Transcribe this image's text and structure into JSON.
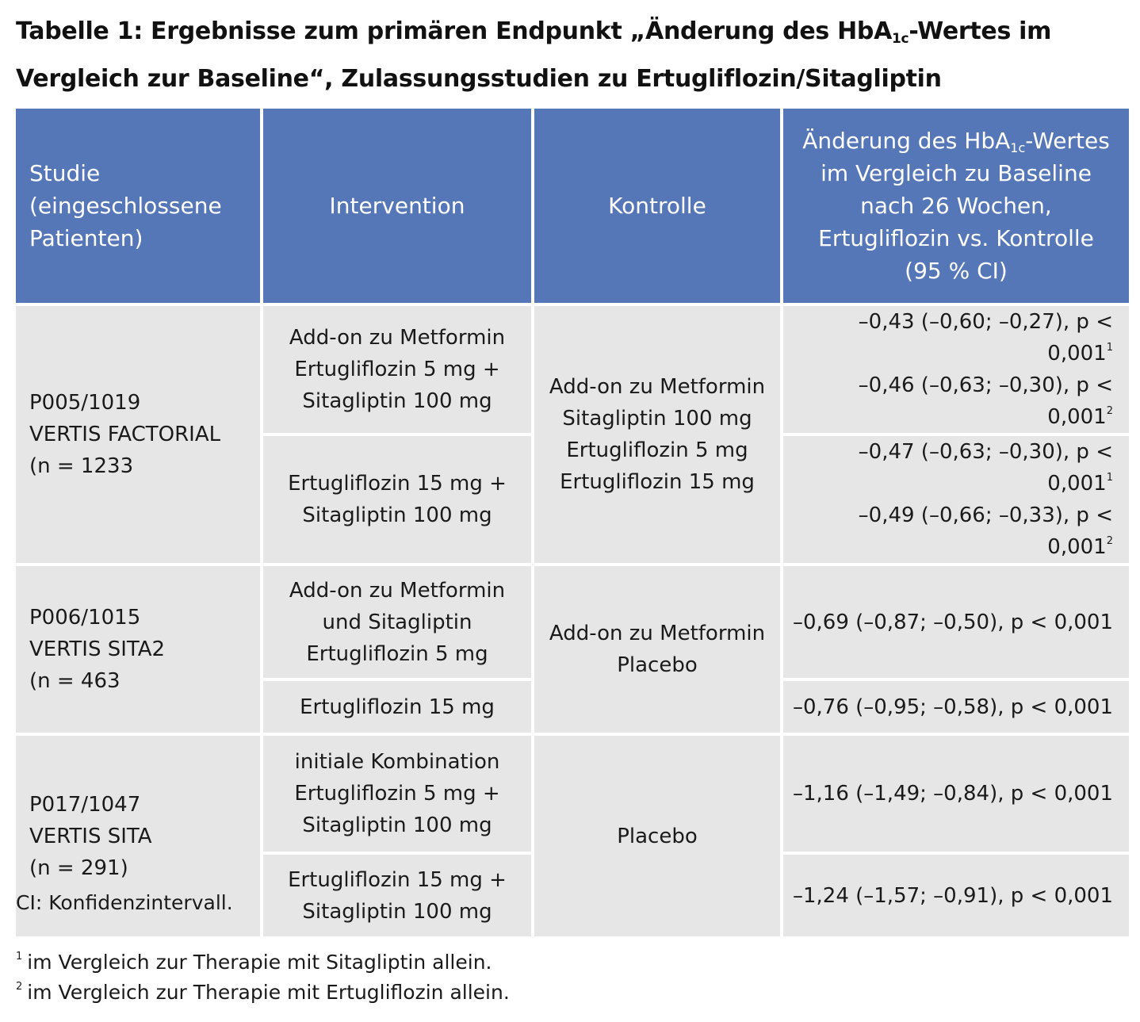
{
  "title": {
    "part1": "Tabelle 1: Ergebnisse zum primären Endpunkt „Änderung des HbA",
    "sub": "1c",
    "part2": "-Wertes im Vergleich zur Baseline“, Zulassungsstudien zu Ertugliflozin/Sitagliptin"
  },
  "columns": {
    "study": [
      "Studie",
      "(eingeschlossene",
      "Patienten)"
    ],
    "intervention": "Intervention",
    "control": "Kontrolle",
    "change": {
      "line1_pre": "Änderung des HbA",
      "line1_sub": "1c",
      "line1_post": "-Wertes",
      "line2": "im Vergleich zu Baseline",
      "line3": "nach 26 Wochen,",
      "line4": "Ertugliflozin vs. Kontrolle",
      "line5": "(95 % CI)"
    }
  },
  "studies": [
    {
      "study": [
        "P005/1019",
        "VERTIS FACTORIAL",
        "(n = 1233"
      ],
      "control": [
        "Add-on zu Metformin",
        "Sitagliptin 100 mg",
        "Ertugliflozin 5 mg",
        "Ertugliflozin 15 mg"
      ],
      "rows": [
        {
          "intervention": [
            "Add-on zu Metformin",
            "Ertugliflozin 5 mg +",
            "Sitagliptin 100 mg"
          ],
          "results": [
            {
              "text": "–0,43 (–0,60; –0,27), p < 0,001",
              "fn": "1"
            },
            {
              "text": "–0,46 (–0,63; –0,30), p < 0,001",
              "fn": "2"
            }
          ]
        },
        {
          "intervention": [
            "Ertugliflozin 15 mg +",
            "Sitagliptin 100 mg"
          ],
          "results": [
            {
              "text": "–0,47 (–0,63; –0,30), p < 0,001",
              "fn": "1"
            },
            {
              "text": "–0,49 (–0,66; –0,33), p < 0,001",
              "fn": "2"
            }
          ]
        }
      ]
    },
    {
      "study": [
        "P006/1015",
        "VERTIS SITA2",
        "(n = 463"
      ],
      "control": [
        "Add-on zu Metformin",
        "Placebo"
      ],
      "rows": [
        {
          "intervention": [
            "Add-on zu Metformin",
            "und Sitagliptin",
            "Ertugliflozin 5 mg"
          ],
          "results": [
            {
              "text": "–0,69 (–0,87; –0,50), p < 0,001",
              "fn": ""
            }
          ]
        },
        {
          "intervention": [
            "Ertugliflozin 15 mg"
          ],
          "results": [
            {
              "text": "–0,76 (–0,95; –0,58), p < 0,001",
              "fn": ""
            }
          ]
        }
      ]
    },
    {
      "study": [
        "P017/1047",
        "VERTIS SITA",
        "(n = 291)"
      ],
      "control": [
        "Placebo"
      ],
      "rows": [
        {
          "intervention": [
            "initiale Kombination",
            "Ertugliflozin 5 mg +",
            "Sitagliptin 100 mg"
          ],
          "results": [
            {
              "text": "–1,16 (–1,49; –0,84), p < 0,001",
              "fn": ""
            }
          ]
        },
        {
          "intervention": [
            "Ertugliflozin 15 mg +",
            "Sitagliptin 100 mg"
          ],
          "results": [
            {
              "text": "–1,24 (–1,57; –0,91), p < 0,001",
              "fn": ""
            }
          ]
        }
      ]
    }
  ],
  "footnotes": {
    "abbrev": "CI: Konfidenzintervall.",
    "notes": [
      {
        "mark": "1",
        "text": "im Vergleich zur Therapie mit Sitagliptin allein."
      },
      {
        "mark": "2",
        "text": "im Vergleich zur Therapie mit Ertugliflozin allein."
      }
    ]
  },
  "colors": {
    "header_bg": "#5577b8",
    "cell_bg": "#e6e6e6"
  }
}
